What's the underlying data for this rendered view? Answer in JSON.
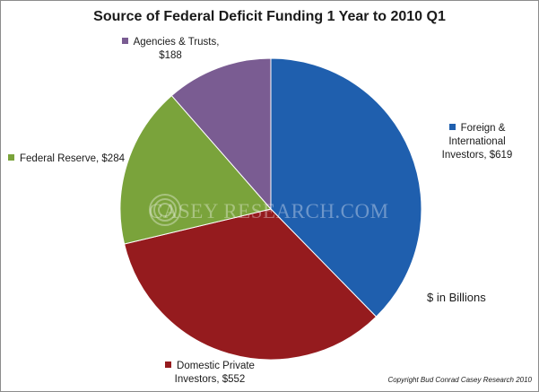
{
  "chart_data": {
    "type": "pie",
    "title": "Source of Federal Deficit Funding 1 Year to 2010 Q1",
    "units_note": "$ in Billions",
    "copyright": "Copyright Bud Conrad Casey Research 2010",
    "watermark": "CASEY RESEARCH.COM",
    "slices": [
      {
        "name": "Foreign & International Investors",
        "value": 619,
        "label": "Foreign & International Investors, $619",
        "color": "#1f5fae"
      },
      {
        "name": "Domestic Private Investors",
        "value": 552,
        "label": "Domestic Private Investors, $552",
        "color": "#951b1e"
      },
      {
        "name": "Federal Reserve",
        "value": 284,
        "label": "Federal Reserve, $284",
        "color": "#7aa33b"
      },
      {
        "name": "Agencies & Trusts",
        "value": 188,
        "label": "Agencies & Trusts, $188",
        "color": "#7a5c92"
      }
    ],
    "label_lines": {
      "foreign": [
        "Foreign &",
        "International",
        "Investors, $619"
      ],
      "domestic": [
        "Domestic Private",
        "Investors, $552"
      ],
      "fed": [
        "Federal Reserve, $284"
      ],
      "agencies": [
        "Agencies & Trusts,",
        "$188"
      ]
    }
  }
}
